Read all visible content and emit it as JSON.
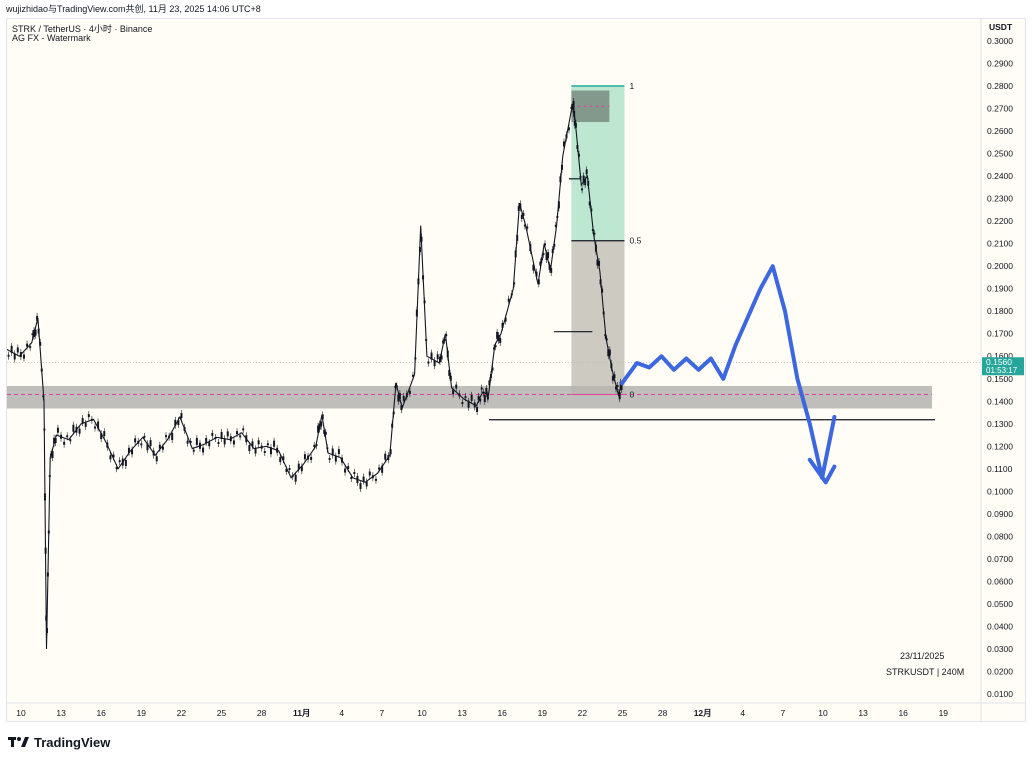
{
  "header": {
    "attribution": "wujizhidao与TradingView.com共创, 11月 23, 2025 14:06 UTC+8"
  },
  "legend": {
    "symbol_line": "STRK / TetherUS · 4小时 · Binance",
    "indicator_line": "AG FX - Watermark"
  },
  "price_axis": {
    "title": "USDT",
    "current_price": "0.1560",
    "countdown": "01:53:17",
    "current_price_color": "#26a69a"
  },
  "footer": {
    "date": "23/11/2025",
    "symbol": "STRKUSDT | 240M",
    "logo_text": "TradingView"
  },
  "chart_data": {
    "type": "candlestick",
    "ylim": [
      0.0,
      0.3
    ],
    "y_ticks": [
      0.3,
      0.29,
      0.28,
      0.27,
      0.26,
      0.25,
      0.24,
      0.23,
      0.22,
      0.21,
      0.2,
      0.19,
      0.18,
      0.17,
      0.16,
      0.15,
      0.14,
      0.13,
      0.12,
      0.11,
      0.1,
      0.09,
      0.08,
      0.07,
      0.06,
      0.05,
      0.04,
      0.03,
      0.02,
      0.01
    ],
    "y_tick_labels": [
      "0.3000",
      "0.2900",
      "0.2800",
      "0.2700",
      "0.2600",
      "0.2500",
      "0.2400",
      "0.2300",
      "0.2200",
      "0.2100",
      "0.2000",
      "0.1900",
      "0.1800",
      "0.1700",
      "0.1600",
      "0.1500",
      "0.1400",
      "0.1300",
      "0.1200",
      "0.1100",
      "0.1000",
      "0.0900",
      "0.0800",
      "0.0700",
      "0.0600",
      "0.0500",
      "0.0400",
      "0.0300",
      "0.0200",
      "0.0100"
    ],
    "x_tick_labels": [
      "10",
      "13",
      "16",
      "19",
      "22",
      "25",
      "28",
      "11月",
      "4",
      "7",
      "10",
      "13",
      "16",
      "19",
      "22",
      "25",
      "28",
      "12月",
      "4",
      "7",
      "10",
      "13",
      "16",
      "19"
    ],
    "x_tick_bold": [
      false,
      false,
      false,
      false,
      false,
      false,
      false,
      true,
      false,
      false,
      false,
      false,
      false,
      false,
      false,
      false,
      false,
      true,
      false,
      false,
      false,
      false,
      false,
      false
    ],
    "price_path": [
      [
        0,
        0.163
      ],
      [
        1,
        0.16
      ],
      [
        2,
        0.166
      ],
      [
        2.5,
        0.177
      ],
      [
        3,
        0.14
      ],
      [
        3.2,
        0.03
      ],
      [
        3.5,
        0.115
      ],
      [
        4,
        0.125
      ],
      [
        5,
        0.123
      ],
      [
        6,
        0.13
      ],
      [
        7,
        0.132
      ],
      [
        8,
        0.122
      ],
      [
        9,
        0.11
      ],
      [
        10,
        0.118
      ],
      [
        11,
        0.124
      ],
      [
        12,
        0.116
      ],
      [
        13,
        0.123
      ],
      [
        14,
        0.133
      ],
      [
        15,
        0.119
      ],
      [
        16,
        0.121
      ],
      [
        17,
        0.124
      ],
      [
        18,
        0.123
      ],
      [
        19,
        0.126
      ],
      [
        20,
        0.119
      ],
      [
        21,
        0.12
      ],
      [
        22,
        0.118
      ],
      [
        23,
        0.106
      ],
      [
        24,
        0.112
      ],
      [
        25,
        0.12
      ],
      [
        25.5,
        0.134
      ],
      [
        26,
        0.117
      ],
      [
        27,
        0.115
      ],
      [
        28,
        0.106
      ],
      [
        29,
        0.104
      ],
      [
        30,
        0.108
      ],
      [
        31,
        0.116
      ],
      [
        31.5,
        0.148
      ],
      [
        32,
        0.137
      ],
      [
        33,
        0.152
      ],
      [
        33.5,
        0.218
      ],
      [
        34,
        0.16
      ],
      [
        35,
        0.157
      ],
      [
        35.5,
        0.17
      ],
      [
        36,
        0.146
      ],
      [
        37,
        0.141
      ],
      [
        38,
        0.138
      ],
      [
        38.5,
        0.144
      ],
      [
        39,
        0.143
      ],
      [
        39.5,
        0.165
      ],
      [
        40,
        0.17
      ],
      [
        41,
        0.19
      ],
      [
        41.5,
        0.228
      ],
      [
        42,
        0.218
      ],
      [
        43,
        0.192
      ],
      [
        43.5,
        0.21
      ],
      [
        44,
        0.198
      ],
      [
        44.5,
        0.218
      ],
      [
        45,
        0.249
      ],
      [
        45.8,
        0.272
      ],
      [
        46,
        0.265
      ],
      [
        46.5,
        0.236
      ],
      [
        47,
        0.24
      ],
      [
        47.5,
        0.214
      ],
      [
        48,
        0.198
      ],
      [
        48.5,
        0.168
      ],
      [
        49,
        0.154
      ],
      [
        49.5,
        0.143
      ],
      [
        49.8,
        0.148
      ]
    ],
    "x_data_max": 57,
    "support_zone": {
      "from": 0.1368,
      "to": 0.1468,
      "dashed_level": 0.143
    },
    "lower_level": 0.1318,
    "step_levels": [
      {
        "price": 0.1709,
        "from_x": 44.3,
        "to_x": 47.4
      },
      {
        "price": 0.2388,
        "from_x": 45.5,
        "to_x": 46.5
      }
    ],
    "fib": {
      "price_1": 0.28,
      "price_05": 0.2113,
      "price_0": 0.143,
      "labels": [
        "1",
        "0.5",
        "0"
      ],
      "x_from": 45.7,
      "x_to": 50.0,
      "upper_dark_box": [
        0.278,
        0.264
      ],
      "dashed_top": 0.271
    },
    "projection_path": [
      [
        49.8,
        0.148
      ],
      [
        51,
        0.157
      ],
      [
        52,
        0.155
      ],
      [
        53,
        0.16
      ],
      [
        54,
        0.154
      ],
      [
        55,
        0.159
      ],
      [
        56,
        0.154
      ],
      [
        57,
        0.159
      ],
      [
        58,
        0.15
      ],
      [
        59,
        0.165
      ],
      [
        61,
        0.19
      ],
      [
        62,
        0.2
      ],
      [
        63,
        0.18
      ],
      [
        64,
        0.15
      ],
      [
        65,
        0.13
      ],
      [
        66,
        0.106
      ],
      [
        67,
        0.133
      ]
    ],
    "projection_arrow": [
      [
        65,
        0.114
      ],
      [
        66.3,
        0.104
      ],
      [
        67,
        0.111
      ]
    ],
    "projection_color": "#3c67de",
    "current_price": 0.156,
    "grid": false
  }
}
